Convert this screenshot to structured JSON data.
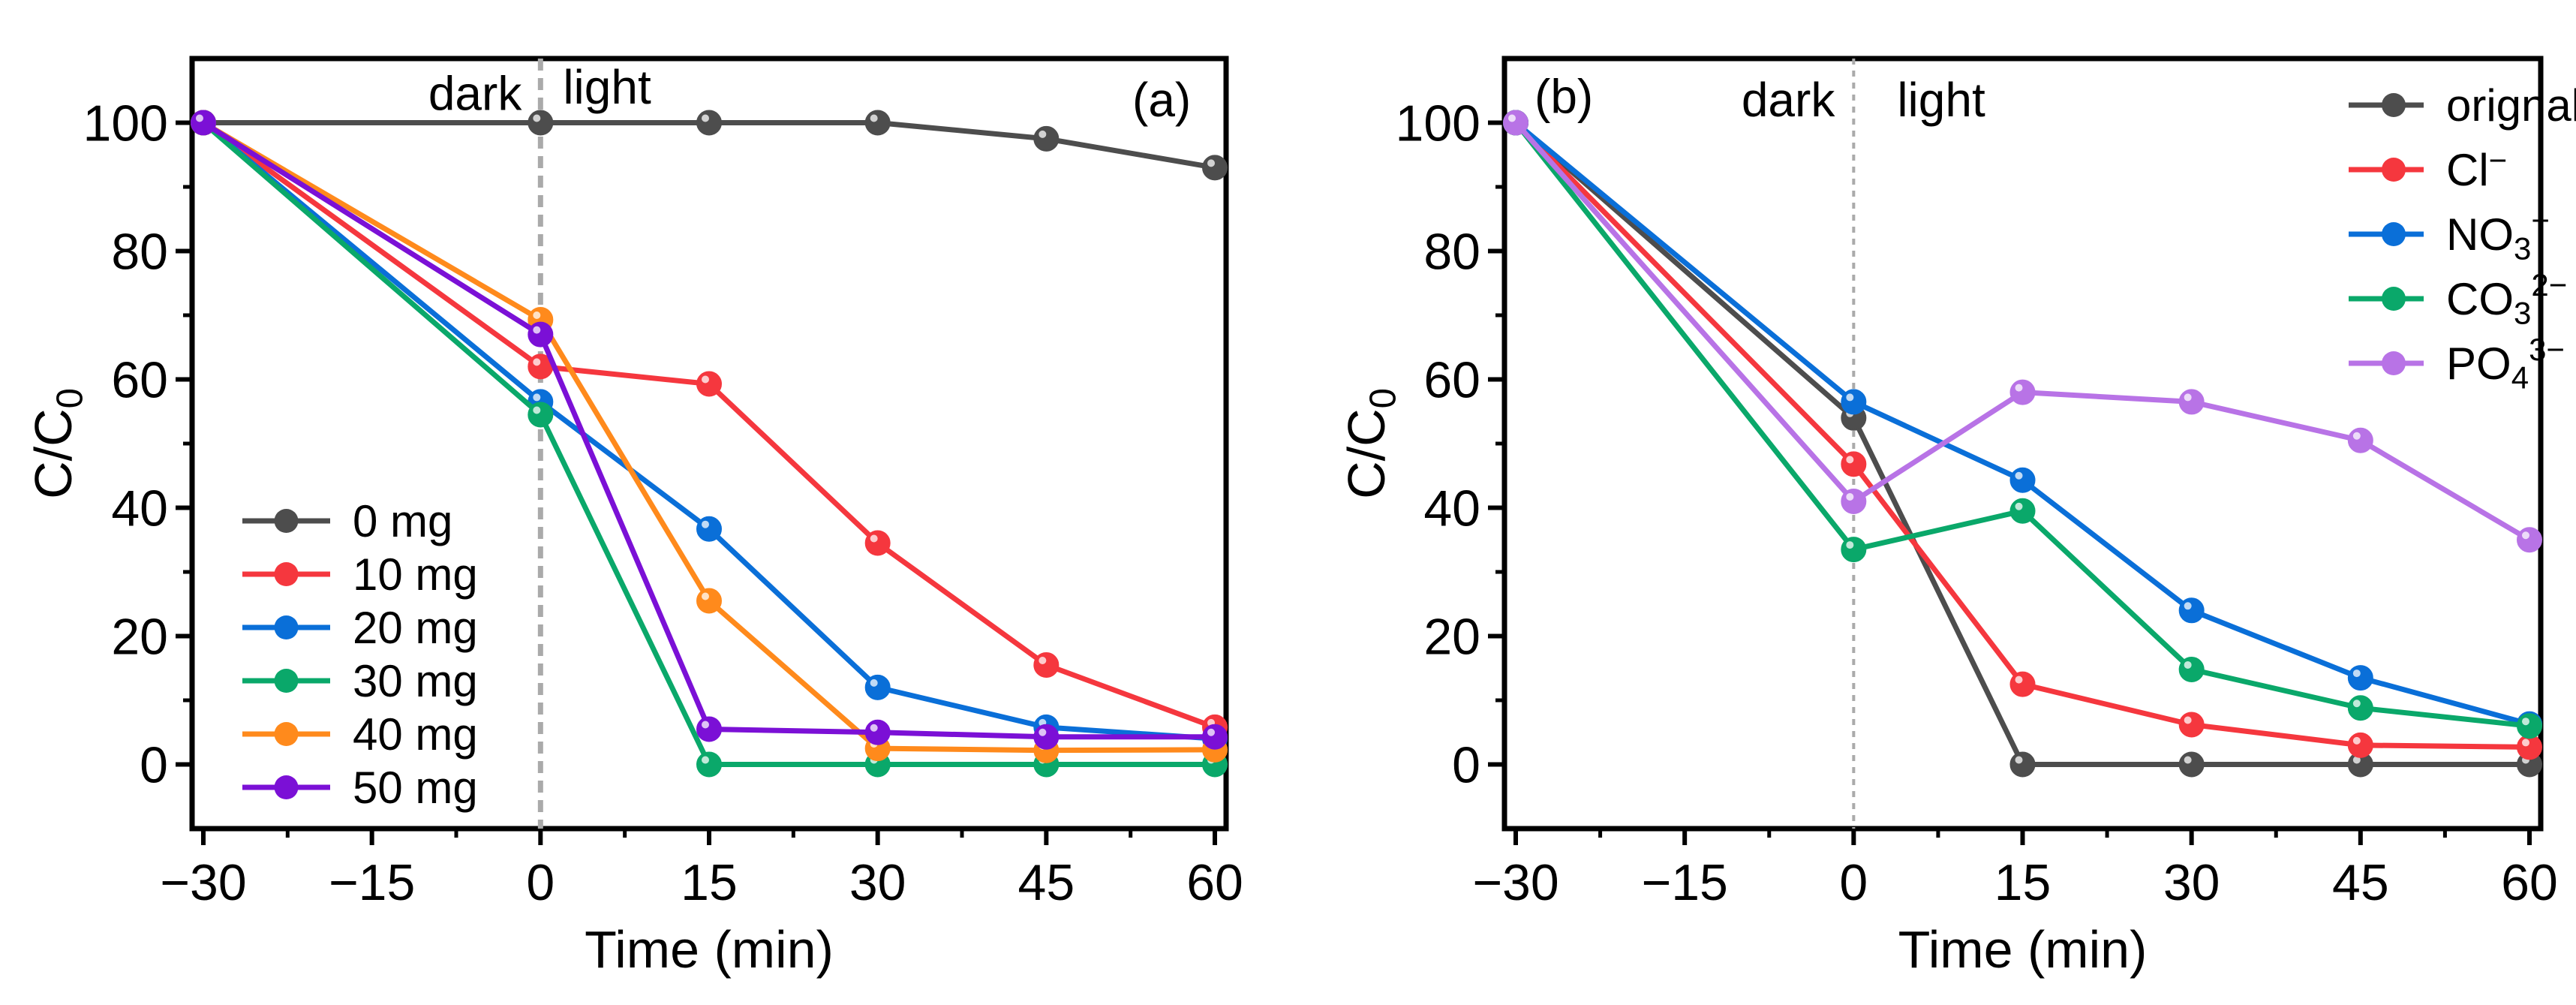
{
  "chart_data": [
    {
      "type": "line",
      "panel_label": "(a)",
      "xlabel": "Time (min)",
      "ylabel": {
        "base": "C/C",
        "sub": "0"
      },
      "xlim": [
        -31,
        61
      ],
      "ylim": [
        -10,
        110
      ],
      "xticks": [
        -30,
        -15,
        0,
        15,
        30,
        45,
        60
      ],
      "xtick_labels": [
        "−30",
        "−15",
        "0",
        "15",
        "30",
        "45",
        "60"
      ],
      "yticks": [
        0,
        20,
        40,
        60,
        80,
        100
      ],
      "ytick_labels": [
        "0",
        "20",
        "40",
        "60",
        "80",
        "100"
      ],
      "annotations": {
        "dark": "dark",
        "light": "light",
        "divider_x": 0
      },
      "legend_position": "bottom-left",
      "x": [
        -30,
        0,
        15,
        30,
        45,
        60
      ],
      "series": [
        {
          "name": "0 mg",
          "label": {
            "base": "0 mg"
          },
          "color": "#4d4d4d",
          "values": [
            100,
            100,
            100,
            100,
            97.5,
            93
          ]
        },
        {
          "name": "10 mg",
          "label": {
            "base": "10 mg"
          },
          "color": "#f5373e",
          "values": [
            100,
            62,
            59.3,
            34.5,
            15.5,
            5.8
          ]
        },
        {
          "name": "20 mg",
          "label": {
            "base": "20 mg"
          },
          "color": "#0a6fd8",
          "values": [
            100,
            56.5,
            36.7,
            12,
            5.8,
            4
          ]
        },
        {
          "name": "30 mg",
          "label": {
            "base": "30 mg"
          },
          "color": "#0aa86a",
          "values": [
            100,
            54.5,
            0,
            0,
            0,
            0
          ]
        },
        {
          "name": "40 mg",
          "label": {
            "base": "40 mg"
          },
          "color": "#ff8a1c",
          "values": [
            100,
            69.3,
            25.5,
            2.5,
            2.2,
            2.3
          ]
        },
        {
          "name": "50 mg",
          "label": {
            "base": "50 mg"
          },
          "color": "#7b10d6",
          "values": [
            100,
            67,
            5.5,
            5,
            4.3,
            4.3
          ]
        }
      ]
    },
    {
      "type": "line",
      "panel_label": "(b)",
      "xlabel": "Time (min)",
      "ylabel": {
        "base": "C/C",
        "sub": "0"
      },
      "xlim": [
        -31,
        61
      ],
      "ylim": [
        -10,
        110
      ],
      "xticks": [
        -30,
        -15,
        0,
        15,
        30,
        45,
        60
      ],
      "xtick_labels": [
        "−30",
        "−15",
        "0",
        "15",
        "30",
        "45",
        "60"
      ],
      "yticks": [
        0,
        20,
        40,
        60,
        80,
        100
      ],
      "ytick_labels": [
        "0",
        "20",
        "40",
        "60",
        "80",
        "100"
      ],
      "annotations": {
        "dark": "dark",
        "light": "light",
        "divider_x": 0
      },
      "legend_position": "top-right",
      "x": [
        -30,
        0,
        15,
        30,
        45,
        60
      ],
      "series": [
        {
          "name": "orignal",
          "label": {
            "base": "orignal"
          },
          "color": "#4d4d4d",
          "values": [
            100,
            54,
            0,
            0,
            0,
            0
          ]
        },
        {
          "name": "Cl−",
          "label": {
            "base": "Cl",
            "sup": "−"
          },
          "color": "#f5373e",
          "values": [
            100,
            46.8,
            12.5,
            6.2,
            3,
            2.7
          ]
        },
        {
          "name": "NO3−",
          "label": {
            "base": "NO",
            "sub": "3",
            "sup": "−"
          },
          "color": "#0a6fd8",
          "values": [
            100,
            56.5,
            44.3,
            24,
            13.5,
            6.3
          ]
        },
        {
          "name": "CO32−",
          "label": {
            "base": "CO",
            "sub": "3",
            "sup": "2−"
          },
          "color": "#0aa86a",
          "values": [
            100,
            33.5,
            39.5,
            14.8,
            8.8,
            6
          ]
        },
        {
          "name": "PO43−",
          "label": {
            "base": "PO",
            "sub": "4",
            "sup": "3−"
          },
          "color": "#b873e6",
          "values": [
            100,
            41,
            58,
            56.5,
            50.5,
            35
          ]
        }
      ]
    }
  ]
}
